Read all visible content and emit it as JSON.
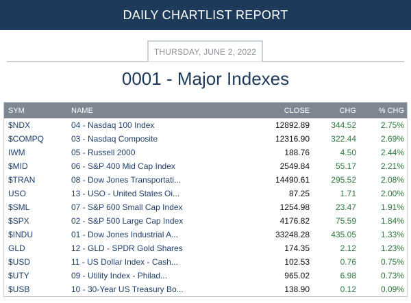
{
  "header": {
    "title": "DAILY CHARTLIST REPORT"
  },
  "report": {
    "date": "THURSDAY, JUNE 2, 2022",
    "list_title": "0001 - Major Indexes"
  },
  "table": {
    "columns": {
      "sym": "SYM",
      "name": "NAME",
      "close": "CLOSE",
      "chg": "CHG",
      "pct": "% CHG"
    },
    "rows": [
      {
        "sym": "$NDX",
        "name": "04 - Nasdaq 100 Index",
        "close": "12892.89",
        "chg": "344.52",
        "pct": "2.75%"
      },
      {
        "sym": "$COMPQ",
        "name": "03 - Nasdaq Composite",
        "close": "12316.90",
        "chg": "322.44",
        "pct": "2.69%"
      },
      {
        "sym": "IWM",
        "name": "05 - Russell 2000",
        "close": "188.76",
        "chg": "4.50",
        "pct": "2.44%"
      },
      {
        "sym": "$MID",
        "name": "06 - S&P 400 Mid Cap Index",
        "close": "2549.84",
        "chg": "55.17",
        "pct": "2.21%"
      },
      {
        "sym": "$TRAN",
        "name": "08 - Dow Jones Transportati...",
        "close": "14490.61",
        "chg": "295.52",
        "pct": "2.08%"
      },
      {
        "sym": "USO",
        "name": "13 - USO - United States Oi...",
        "close": "87.25",
        "chg": "1.71",
        "pct": "2.00%"
      },
      {
        "sym": "$SML",
        "name": "07 - S&P 600 Small Cap Index",
        "close": "1254.98",
        "chg": "23.47",
        "pct": "1.91%"
      },
      {
        "sym": "$SPX",
        "name": "02 - S&P 500 Large Cap Index",
        "close": "4176.82",
        "chg": "75.59",
        "pct": "1.84%"
      },
      {
        "sym": "$INDU",
        "name": "01 - Dow Jones Industrial A...",
        "close": "33248.28",
        "chg": "435.05",
        "pct": "1.33%"
      },
      {
        "sym": "GLD",
        "name": "12 - GLD - SPDR Gold Shares",
        "close": "174.35",
        "chg": "2.12",
        "pct": "1.23%"
      },
      {
        "sym": "$USD",
        "name": "11 - US Dollar Index - Cash...",
        "close": "102.53",
        "chg": "0.76",
        "pct": "0.75%"
      },
      {
        "sym": "$UTY",
        "name": "09 - Utility Index - Philad...",
        "close": "965.02",
        "chg": "6.98",
        "pct": "0.73%"
      },
      {
        "sym": "$USB",
        "name": "10 - 30-Year US Treasury Bo...",
        "close": "138.90",
        "chg": "0.12",
        "pct": "0.09%"
      }
    ]
  }
}
